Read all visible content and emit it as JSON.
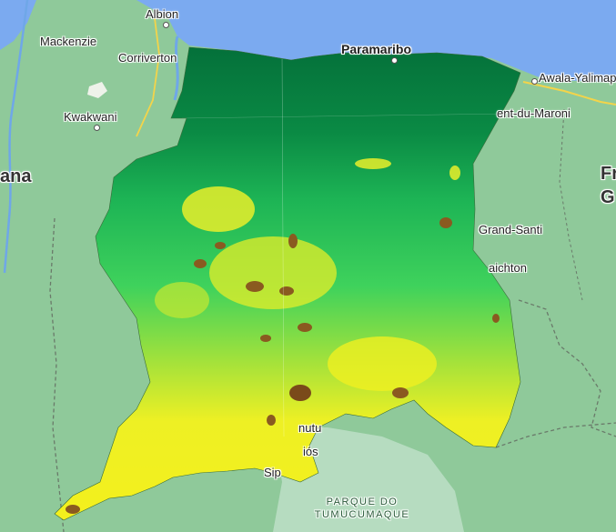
{
  "map": {
    "labels": {
      "albion": "Albion",
      "mackenzie": "Mackenzie",
      "corriverton": "Corriverton",
      "kwakwani": "Kwakwani",
      "guyana": "ana",
      "paramaribo": "Paramaribo",
      "awala": "Awala-Yalimap",
      "saint_laurent": "ent-du-Maroni",
      "french_guiana_1": "Fr",
      "french_guiana_2": "G",
      "grand_santi": "Grand-Santi",
      "maripasoula": "aichton",
      "tumucumaque_1": "PARQUE DO",
      "tumucumaque_2": "TUMUCUMAQUE",
      "south_town_1": "nutu",
      "south_town_2": "iós",
      "south_town_3": "Sip"
    },
    "colors": {
      "ocean": "#7baaf0",
      "land": "#8fc99a",
      "park": "#b6dcc0",
      "elev_low": "#05733a",
      "elev_mid": "#2fd15a",
      "elev_high": "#f6f21e",
      "elev_peak": "#7a4a1a"
    }
  }
}
